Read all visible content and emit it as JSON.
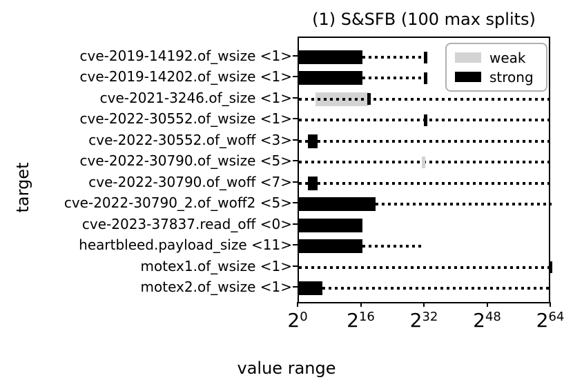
{
  "chart_data": {
    "type": "bar",
    "orientation": "horizontal",
    "title": "(1) S&SFB (100 max splits)",
    "xlabel": "value range",
    "ylabel": "target",
    "x_scale": "log2",
    "x_tick_exponents": [
      0,
      16,
      32,
      48,
      64
    ],
    "xlim_exponents": [
      0,
      64
    ],
    "grid": false,
    "colors": {
      "strong": "#000000",
      "weak": "#d3d3d3",
      "legend_border": "#b0b0b0"
    },
    "legend": {
      "position": "upper right",
      "entries": [
        {
          "label": "weak",
          "kind": "weak"
        },
        {
          "label": "strong",
          "kind": "strong"
        }
      ]
    },
    "rows": [
      {
        "label": "cve-2019-14192.of_wsize <1>",
        "bar": {
          "kind": "strong",
          "from_exp": 0,
          "to_exp": 16
        },
        "dotted": {
          "from_exp": 16,
          "to_exp": 32
        },
        "marker": {
          "kind": "strong",
          "exp": 32
        }
      },
      {
        "label": "cve-2019-14202.of_wsize <1>",
        "bar": {
          "kind": "strong",
          "from_exp": 0,
          "to_exp": 16
        },
        "dotted": {
          "from_exp": 16,
          "to_exp": 32
        },
        "marker": {
          "kind": "strong",
          "exp": 32
        }
      },
      {
        "label": "cve-2021-3246.of_size <1>",
        "bar": {
          "kind": "weak",
          "from_exp": 4.2,
          "to_exp": 17.7
        },
        "dotted": {
          "from_exp": 0,
          "to_exp": 64
        },
        "marker": {
          "kind": "strong",
          "exp": 17.7
        }
      },
      {
        "label": "cve-2022-30552.of_wsize <1>",
        "bar": null,
        "dotted": {
          "from_exp": 0,
          "to_exp": 64
        },
        "marker": {
          "kind": "strong",
          "exp": 32
        }
      },
      {
        "label": "cve-2022-30552.of_woff <3>",
        "bar": {
          "kind": "strong",
          "from_exp": 2.2,
          "to_exp": 4.8
        },
        "dotted": {
          "from_exp": 0,
          "to_exp": 64
        },
        "marker": null
      },
      {
        "label": "cve-2022-30790.of_wsize <5>",
        "bar": null,
        "dotted": {
          "from_exp": 0,
          "to_exp": 64
        },
        "marker": {
          "kind": "weak",
          "exp": 31.6
        }
      },
      {
        "label": "cve-2022-30790.of_woff <7>",
        "bar": {
          "kind": "strong",
          "from_exp": 2.2,
          "to_exp": 4.8
        },
        "dotted": {
          "from_exp": 0,
          "to_exp": 64
        },
        "marker": null
      },
      {
        "label": "cve-2022-30790_2.of_woff2 <5>",
        "bar": {
          "kind": "strong",
          "from_exp": 0,
          "to_exp": 19.4
        },
        "dotted": {
          "from_exp": 19.4,
          "to_exp": 64
        },
        "marker": null
      },
      {
        "label": "cve-2023-37837.read_off <0>",
        "bar": {
          "kind": "strong",
          "from_exp": 0,
          "to_exp": 16
        },
        "dotted": null,
        "marker": null
      },
      {
        "label": "heartbleed.payload_size <11>",
        "bar": {
          "kind": "strong",
          "from_exp": 0,
          "to_exp": 16
        },
        "dotted": {
          "from_exp": 16,
          "to_exp": 31.6
        },
        "marker": null
      },
      {
        "label": "motex1.of_wsize <1>",
        "bar": null,
        "dotted": {
          "from_exp": 0,
          "to_exp": 64
        },
        "marker": {
          "kind": "strong",
          "exp": 63.7
        }
      },
      {
        "label": "motex2.of_wsize <1>",
        "bar": {
          "kind": "strong",
          "from_exp": 0,
          "to_exp": 6
        },
        "dotted": {
          "from_exp": 6,
          "to_exp": 64
        },
        "marker": null
      }
    ]
  }
}
